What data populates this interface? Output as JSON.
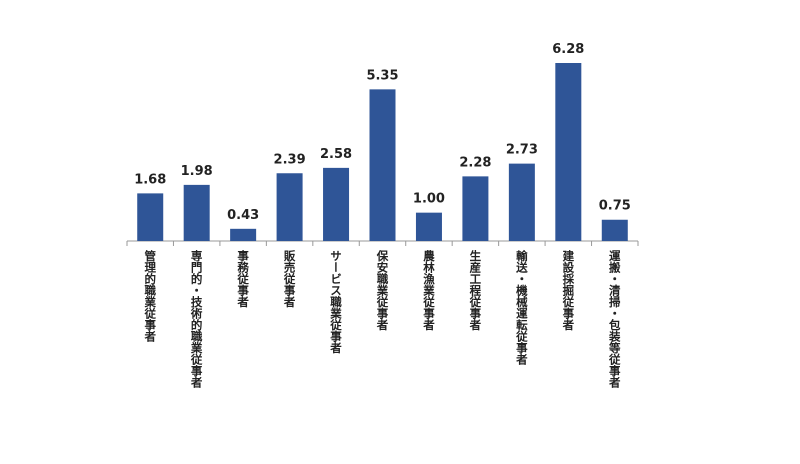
{
  "chart_data": {
    "type": "bar",
    "categories": [
      "管理的職業従事者",
      "専門的・技術的職業従事者",
      "事務従事者",
      "販売従事者",
      "サービス職業従事者",
      "保安職業従事者",
      "農林漁業従事者",
      "生産工程従事者",
      "輸送・機械運転従事者",
      "建設採掘従事者",
      "運搬・清掃・包装等従事者"
    ],
    "values": [
      1.68,
      1.98,
      0.43,
      2.39,
      2.58,
      5.35,
      1.0,
      2.28,
      2.73,
      6.28,
      0.75
    ],
    "value_labels": [
      "1.68",
      "1.98",
      "0.43",
      "2.39",
      "2.58",
      "5.35",
      "1.00",
      "2.28",
      "2.73",
      "6.28",
      "0.75"
    ],
    "color": "#2f5597"
  }
}
